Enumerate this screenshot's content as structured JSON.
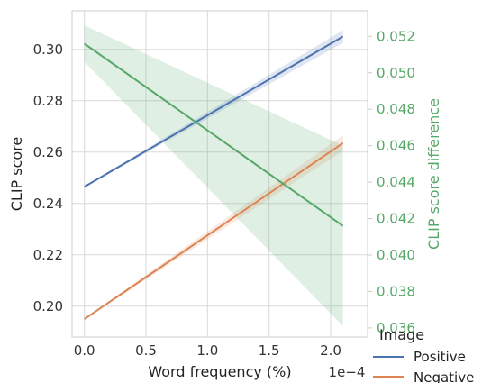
{
  "chart_data": {
    "type": "line",
    "title": "",
    "xlabel": "Word frequency (%)",
    "x_offset_label": "1e−4",
    "ylabel_left": "CLIP score",
    "ylabel_right": "CLIP score difference",
    "xlim": [
      -0.1,
      2.3
    ],
    "ylim_left": [
      0.188,
      0.315
    ],
    "ylim_right": [
      0.0355,
      0.0534
    ],
    "x_ticks": [
      0.0,
      0.5,
      1.0,
      1.5,
      2.0
    ],
    "x_tick_labels": [
      "0.0",
      "0.5",
      "1.0",
      "1.5",
      "2.0"
    ],
    "y_ticks_left": [
      0.2,
      0.22,
      0.24,
      0.26,
      0.28,
      0.3
    ],
    "y_tick_labels_left": [
      "0.20",
      "0.22",
      "0.24",
      "0.26",
      "0.28",
      "0.30"
    ],
    "y_ticks_right": [
      0.036,
      0.038,
      0.04,
      0.042,
      0.044,
      0.046,
      0.048,
      0.05,
      0.052
    ],
    "y_tick_labels_right": [
      "0.036",
      "0.038",
      "0.040",
      "0.042",
      "0.044",
      "0.046",
      "0.048",
      "0.050",
      "0.052"
    ],
    "grid": true,
    "legend": {
      "title": "Image",
      "placement": "bottom-right, outside",
      "entries": [
        "Positive",
        "Negative"
      ]
    },
    "colors": {
      "positive": "#4c72b0",
      "negative": "#dd8452",
      "difference": "#55a868"
    },
    "series": [
      {
        "name": "Positive",
        "axis": "left",
        "color": "#4c72b0",
        "x": [
          0.0,
          2.1
        ],
        "y": [
          0.2465,
          0.305
        ],
        "ci_lower": [
          0.2463,
          0.3025
        ],
        "ci_upper": [
          0.2467,
          0.3075
        ]
      },
      {
        "name": "Negative",
        "axis": "left",
        "color": "#dd8452",
        "x": [
          0.0,
          2.1
        ],
        "y": [
          0.195,
          0.2635
        ],
        "ci_lower": [
          0.1948,
          0.2605
        ],
        "ci_upper": [
          0.1952,
          0.2665
        ]
      },
      {
        "axis": "right",
        "color": "#55a868",
        "x": [
          0.0,
          2.1
        ],
        "y": [
          0.0516,
          0.0416
        ],
        "ci_lower": [
          0.0506,
          0.0361
        ],
        "ci_upper": [
          0.0526,
          0.046
        ]
      }
    ]
  }
}
